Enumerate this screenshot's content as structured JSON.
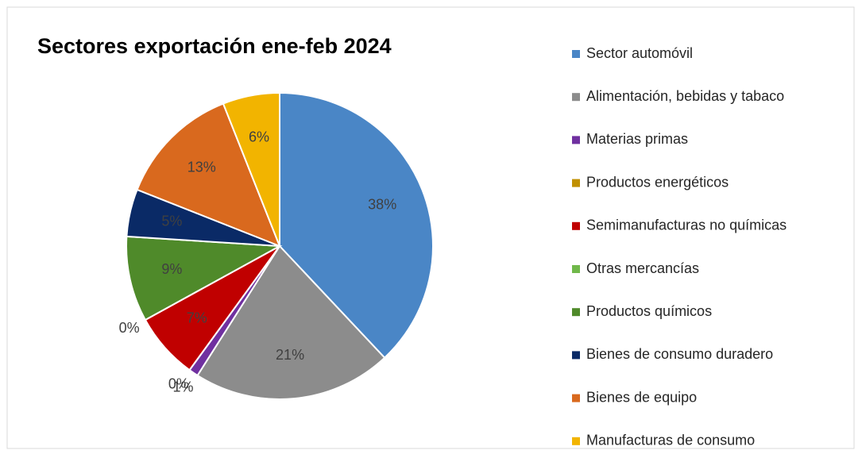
{
  "chart_data": {
    "type": "pie",
    "title": "Sectores exportación ene-feb 2024",
    "categories": [
      "Sector automóvil",
      "Alimentación, bebidas y tabaco",
      "Materias primas",
      "Productos energéticos",
      "Semimanufacturas no químicas",
      "Otras mercancías",
      "Productos químicos",
      "Bienes de consumo duradero",
      "Bienes de equipo",
      "Manufacturas de consumo"
    ],
    "values": [
      38,
      21,
      1,
      0,
      7,
      0,
      9,
      5,
      13,
      6
    ],
    "value_labels": [
      "38%",
      "21%",
      "1%",
      "0%",
      "7%",
      "0%",
      "9%",
      "5%",
      "13%",
      "6%"
    ],
    "colors": [
      "#4a86c6",
      "#8c8c8c",
      "#7030a0",
      "#c09000",
      "#c00000",
      "#70b84a",
      "#4f8a2a",
      "#0a2a66",
      "#d9691e",
      "#f2b400"
    ],
    "legend": "right"
  }
}
